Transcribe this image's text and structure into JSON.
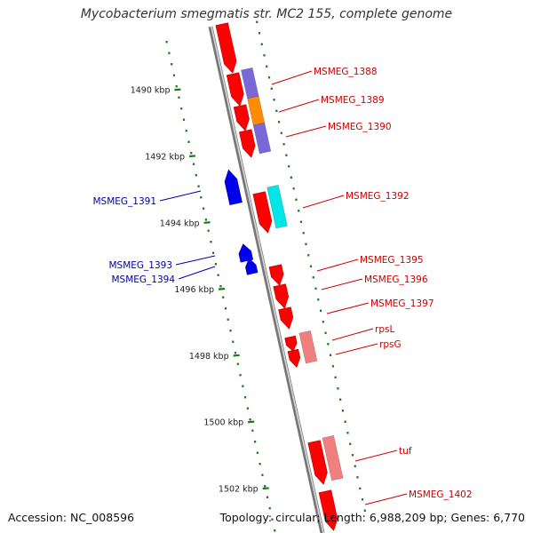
{
  "title": "Mycobacterium smegmatis str. MC2 155, complete genome",
  "footer": {
    "accession": "Accession: NC_008596",
    "summary": "Topology: circular; Length: 6,988,209 bp; Genes: 6,770"
  },
  "colors": {
    "backbone": "#888888",
    "tick": "#1a7a1a",
    "forward_gene": "#ff0000",
    "reverse_gene": "#0000ee",
    "label_forward": "#cc0000",
    "label_reverse": "#0000aa"
  },
  "ticks": [
    {
      "label": "1490 kbp",
      "pos_kbp": 1490
    },
    {
      "label": "1492 kbp",
      "pos_kbp": 1492
    },
    {
      "label": "1494 kbp",
      "pos_kbp": 1494
    },
    {
      "label": "1496 kbp",
      "pos_kbp": 1496
    },
    {
      "label": "1498 kbp",
      "pos_kbp": 1498
    },
    {
      "label": "1500 kbp",
      "pos_kbp": 1500
    },
    {
      "label": "1502 kbp",
      "pos_kbp": 1502
    }
  ],
  "genes": [
    {
      "label": "MSMEG_1388",
      "strand": "+",
      "color": "#ff0000",
      "pos_kbp": 1489.6
    },
    {
      "label": "MSMEG_1389",
      "strand": "+",
      "color": "#ff0000",
      "pos_kbp": 1490.6
    },
    {
      "label": "MSMEG_1390",
      "strand": "+",
      "color": "#ff0000",
      "pos_kbp": 1491.5
    },
    {
      "label": "MSMEG_1391",
      "strand": "-",
      "color": "#0000ee",
      "pos_kbp": 1493.2
    },
    {
      "label": "MSMEG_1392",
      "strand": "+",
      "color": "#ff0000",
      "pos_kbp": 1494.1
    },
    {
      "label": "MSMEG_1393",
      "strand": "-",
      "color": "#0000ee",
      "pos_kbp": 1495.3
    },
    {
      "label": "MSMEG_1394",
      "strand": "-",
      "color": "#0000ee",
      "pos_kbp": 1495.6
    },
    {
      "label": "MSMEG_1395",
      "strand": "+",
      "color": "#ff0000",
      "pos_kbp": 1496.3
    },
    {
      "label": "MSMEG_1396",
      "strand": "+",
      "color": "#ff0000",
      "pos_kbp": 1496.8
    },
    {
      "label": "MSMEG_1397",
      "strand": "+",
      "color": "#ff0000",
      "pos_kbp": 1497.4
    },
    {
      "label": "rpsL",
      "strand": "+",
      "color": "#ff0000",
      "pos_kbp": 1498.0
    },
    {
      "label": "rpsG",
      "strand": "+",
      "color": "#ff0000",
      "pos_kbp": 1498.5
    },
    {
      "label": "tuf",
      "strand": "+",
      "color": "#ff0000",
      "pos_kbp": 1501.6
    },
    {
      "label": "MSMEG_1402",
      "strand": "+",
      "color": "#ff0000",
      "pos_kbp": 1503.0
    }
  ],
  "features": [
    {
      "kind": "cog",
      "color": "#7b68d8"
    },
    {
      "kind": "cog",
      "color": "#ff8c00"
    },
    {
      "kind": "cog",
      "color": "#00e5e5"
    },
    {
      "kind": "cog",
      "color": "#f08080"
    }
  ]
}
